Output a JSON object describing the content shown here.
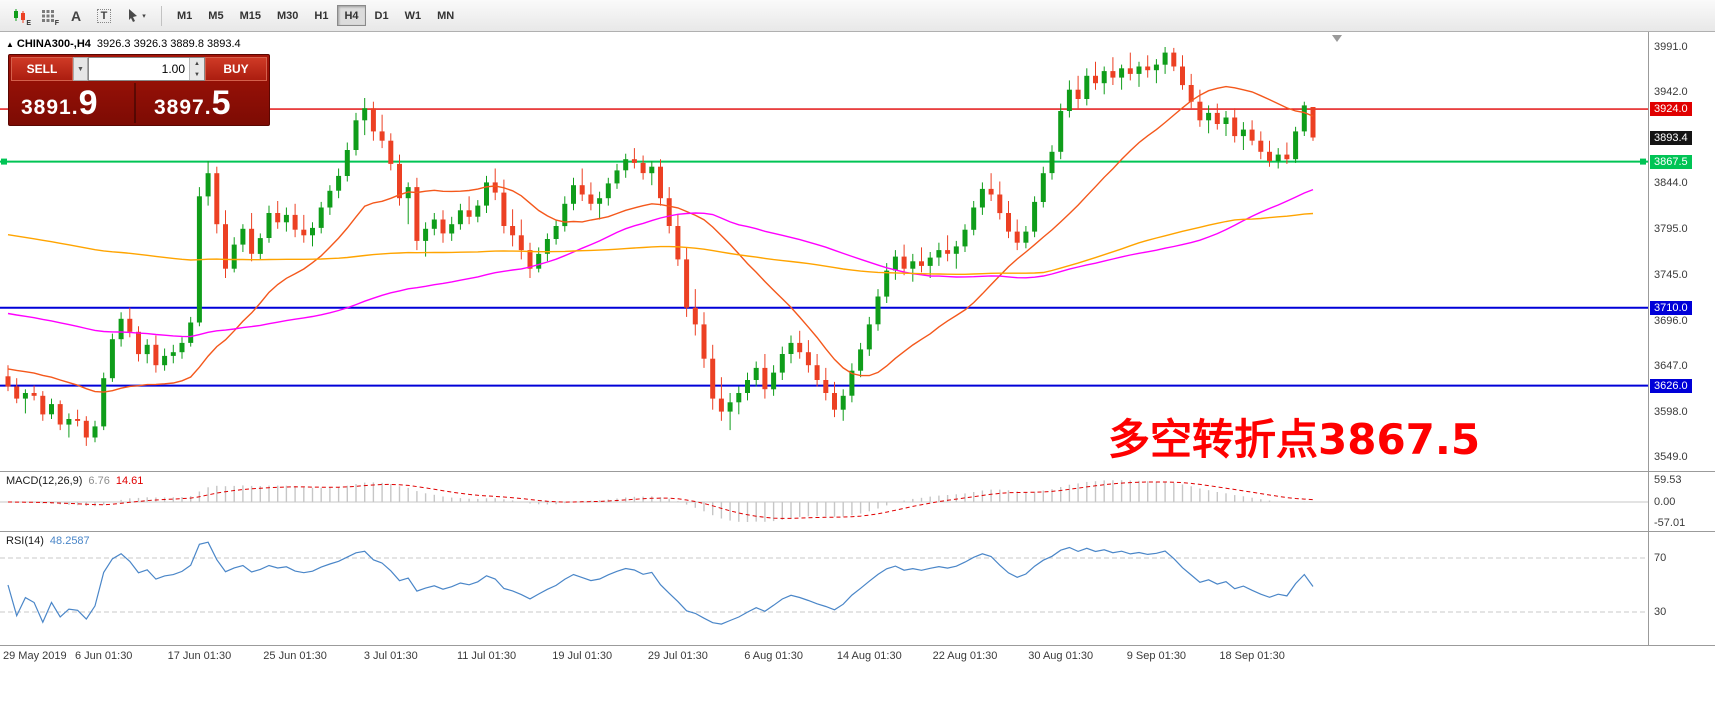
{
  "toolbar": {
    "icons": [
      {
        "name": "chart-bars-icon",
        "sub": "E"
      },
      {
        "name": "grid-icon",
        "sub": "F"
      },
      {
        "name": "text-label-icon",
        "glyph": "A"
      },
      {
        "name": "text-box-icon",
        "glyph": "T"
      },
      {
        "name": "cursor-tool-icon",
        "caret": "▾"
      }
    ],
    "timeframes": [
      "M1",
      "M5",
      "M15",
      "M30",
      "H1",
      "H4",
      "D1",
      "W1",
      "MN"
    ],
    "active_timeframe": "H4"
  },
  "chart": {
    "symbol": "CHINA300-,H4",
    "ohlc": "3926.3 3926.3 3889.8 3893.4",
    "annotation": {
      "text": "多空转折点3867.5",
      "color": "#fe0000"
    },
    "order_panel": {
      "sell_label": "SELL",
      "buy_label": "BUY",
      "volume": "1.00",
      "sell_price_main": "3891.",
      "sell_price_big": "9",
      "buy_price_main": "3897.",
      "buy_price_big": "5"
    },
    "hlines": [
      {
        "price": 3924.0,
        "color": "#e00000",
        "width": 1.4,
        "handles": false
      },
      {
        "price": 3867.5,
        "color": "#00c455",
        "width": 2,
        "handles": true
      },
      {
        "price": 3710.0,
        "color": "#0000d8",
        "width": 2,
        "handles": false
      },
      {
        "price": 3626.0,
        "color": "#0000d8",
        "width": 2,
        "handles": false
      }
    ],
    "badges": [
      {
        "text": "3924.0",
        "price": 3924.0,
        "bg": "#e00000"
      },
      {
        "text": "3893.4",
        "price": 3893.4,
        "bg": "#141414"
      },
      {
        "text": "3867.5",
        "price": 3867.5,
        "bg": "#00c455"
      },
      {
        "text": "3710.0",
        "price": 3710.0,
        "bg": "#0000d8"
      },
      {
        "text": "3626.0",
        "price": 3626.0,
        "bg": "#0000d8"
      }
    ],
    "axis_ticks": [
      3991.0,
      3942.0,
      3844.0,
      3795.0,
      3745.0,
      3696.0,
      3647.0,
      3598.0,
      3549.0
    ]
  },
  "macd": {
    "name": "MACD(12,26,9)",
    "value_main": "6.76",
    "value_signal": "14.61",
    "fast": 12,
    "slow": 26,
    "signal": 9,
    "axis": [
      59.53,
      0.0,
      -57.01
    ]
  },
  "rsi": {
    "name": "RSI(14)",
    "value": "48.2587",
    "period": 14,
    "levels": [
      70,
      30
    ],
    "axis": [
      70,
      30
    ]
  },
  "time_axis": {
    "labels": [
      {
        "text": "29 May 2019",
        "i": 0
      },
      {
        "text": "6 Jun 01:30",
        "i": 11
      },
      {
        "text": "17 Jun 01:30",
        "i": 22
      },
      {
        "text": "25 Jun 01:30",
        "i": 33
      },
      {
        "text": "3 Jul 01:30",
        "i": 44
      },
      {
        "text": "11 Jul 01:30",
        "i": 55
      },
      {
        "text": "19 Jul 01:30",
        "i": 66
      },
      {
        "text": "29 Jul 01:30",
        "i": 77
      },
      {
        "text": "6 Aug 01:30",
        "i": 88
      },
      {
        "text": "14 Aug 01:30",
        "i": 99
      },
      {
        "text": "22 Aug 01:30",
        "i": 110
      },
      {
        "text": "30 Aug 01:30",
        "i": 121
      },
      {
        "text": "9 Sep 01:30",
        "i": 132
      },
      {
        "text": "18 Sep 01:30",
        "i": 143
      }
    ]
  },
  "chart_data": {
    "type": "candlestick",
    "title": "CHINA300-,H4",
    "timeframe": "H4",
    "current_bar": {
      "open": 3926.3,
      "high": 3926.3,
      "low": 3889.8,
      "close": 3893.4
    },
    "y_ticks": [
      3991.0,
      3942.0,
      3893.4,
      3844.0,
      3795.0,
      3745.0,
      3696.0,
      3647.0,
      3598.0,
      3549.0
    ],
    "levels": {
      "resistance": 3924.0,
      "pivot": 3867.5,
      "support1": 3710.0,
      "support2": 3626.0
    },
    "colors": {
      "up": "#0f9d1a",
      "down": "#ec4023"
    },
    "moving_averages": [
      {
        "name": "ma-fast",
        "period": 20,
        "seed": 3645,
        "color": "#f4581c"
      },
      {
        "name": "ma-mid",
        "period": 60,
        "seed": 3705,
        "color": "#ff00ff"
      },
      {
        "name": "ma-slow",
        "period": 120,
        "seed": 3790,
        "color": "#ffa400"
      }
    ],
    "candles": [
      [
        3636,
        3648,
        3620,
        3625
      ],
      [
        3625,
        3634,
        3607,
        3612
      ],
      [
        3612,
        3622,
        3596,
        3618
      ],
      [
        3618,
        3626,
        3610,
        3615
      ],
      [
        3615,
        3620,
        3588,
        3595
      ],
      [
        3595,
        3612,
        3590,
        3606
      ],
      [
        3606,
        3610,
        3578,
        3584
      ],
      [
        3584,
        3596,
        3570,
        3590
      ],
      [
        3590,
        3600,
        3582,
        3588
      ],
      [
        3588,
        3593,
        3561,
        3570
      ],
      [
        3570,
        3588,
        3565,
        3582
      ],
      [
        3582,
        3640,
        3578,
        3634
      ],
      [
        3634,
        3682,
        3630,
        3676
      ],
      [
        3676,
        3705,
        3668,
        3698
      ],
      [
        3698,
        3710,
        3678,
        3684
      ],
      [
        3684,
        3690,
        3652,
        3660
      ],
      [
        3660,
        3676,
        3650,
        3670
      ],
      [
        3670,
        3680,
        3640,
        3648
      ],
      [
        3648,
        3666,
        3642,
        3658
      ],
      [
        3658,
        3670,
        3650,
        3662
      ],
      [
        3662,
        3678,
        3655,
        3672
      ],
      [
        3672,
        3700,
        3668,
        3694
      ],
      [
        3694,
        3840,
        3690,
        3830
      ],
      [
        3830,
        3868,
        3820,
        3855
      ],
      [
        3855,
        3862,
        3790,
        3800
      ],
      [
        3800,
        3815,
        3742,
        3752
      ],
      [
        3752,
        3786,
        3748,
        3778
      ],
      [
        3778,
        3800,
        3770,
        3795
      ],
      [
        3795,
        3812,
        3760,
        3768
      ],
      [
        3768,
        3790,
        3762,
        3785
      ],
      [
        3785,
        3820,
        3780,
        3812
      ],
      [
        3812,
        3825,
        3795,
        3802
      ],
      [
        3802,
        3818,
        3792,
        3810
      ],
      [
        3810,
        3822,
        3786,
        3794
      ],
      [
        3794,
        3810,
        3780,
        3788
      ],
      [
        3788,
        3802,
        3776,
        3796
      ],
      [
        3796,
        3824,
        3790,
        3818
      ],
      [
        3818,
        3842,
        3810,
        3836
      ],
      [
        3836,
        3860,
        3828,
        3852
      ],
      [
        3852,
        3888,
        3846,
        3880
      ],
      [
        3880,
        3920,
        3874,
        3912
      ],
      [
        3912,
        3936,
        3896,
        3925
      ],
      [
        3925,
        3932,
        3890,
        3900
      ],
      [
        3900,
        3918,
        3882,
        3890
      ],
      [
        3890,
        3898,
        3858,
        3865
      ],
      [
        3865,
        3875,
        3820,
        3828
      ],
      [
        3828,
        3845,
        3800,
        3840
      ],
      [
        3840,
        3850,
        3772,
        3782
      ],
      [
        3782,
        3802,
        3765,
        3795
      ],
      [
        3795,
        3812,
        3788,
        3805
      ],
      [
        3805,
        3815,
        3780,
        3790
      ],
      [
        3790,
        3808,
        3782,
        3800
      ],
      [
        3800,
        3822,
        3794,
        3815
      ],
      [
        3815,
        3830,
        3800,
        3808
      ],
      [
        3808,
        3826,
        3802,
        3820
      ],
      [
        3820,
        3852,
        3812,
        3845
      ],
      [
        3845,
        3860,
        3826,
        3834
      ],
      [
        3834,
        3848,
        3790,
        3798
      ],
      [
        3798,
        3816,
        3776,
        3788
      ],
      [
        3788,
        3805,
        3762,
        3772
      ],
      [
        3772,
        3780,
        3742,
        3752
      ],
      [
        3752,
        3775,
        3748,
        3768
      ],
      [
        3768,
        3790,
        3760,
        3784
      ],
      [
        3784,
        3805,
        3778,
        3798
      ],
      [
        3798,
        3830,
        3792,
        3822
      ],
      [
        3822,
        3850,
        3815,
        3842
      ],
      [
        3842,
        3860,
        3825,
        3832
      ],
      [
        3832,
        3845,
        3815,
        3822
      ],
      [
        3822,
        3835,
        3805,
        3828
      ],
      [
        3828,
        3850,
        3820,
        3844
      ],
      [
        3844,
        3865,
        3838,
        3858
      ],
      [
        3858,
        3876,
        3850,
        3870
      ],
      [
        3870,
        3882,
        3860,
        3866
      ],
      [
        3866,
        3874,
        3848,
        3855
      ],
      [
        3855,
        3868,
        3842,
        3862
      ],
      [
        3862,
        3870,
        3820,
        3828
      ],
      [
        3828,
        3840,
        3790,
        3798
      ],
      [
        3798,
        3810,
        3755,
        3762
      ],
      [
        3762,
        3775,
        3700,
        3710
      ],
      [
        3710,
        3730,
        3680,
        3692
      ],
      [
        3692,
        3705,
        3645,
        3655
      ],
      [
        3655,
        3670,
        3600,
        3612
      ],
      [
        3612,
        3635,
        3588,
        3598
      ],
      [
        3598,
        3618,
        3578,
        3608
      ],
      [
        3608,
        3625,
        3595,
        3618
      ],
      [
        3618,
        3640,
        3610,
        3632
      ],
      [
        3632,
        3652,
        3625,
        3645
      ],
      [
        3645,
        3660,
        3612,
        3622
      ],
      [
        3622,
        3648,
        3615,
        3640
      ],
      [
        3640,
        3668,
        3632,
        3660
      ],
      [
        3660,
        3680,
        3650,
        3672
      ],
      [
        3672,
        3685,
        3655,
        3662
      ],
      [
        3662,
        3675,
        3640,
        3648
      ],
      [
        3648,
        3660,
        3625,
        3632
      ],
      [
        3632,
        3645,
        3610,
        3618
      ],
      [
        3618,
        3630,
        3592,
        3600
      ],
      [
        3600,
        3622,
        3588,
        3615
      ],
      [
        3615,
        3650,
        3608,
        3642
      ],
      [
        3642,
        3672,
        3635,
        3665
      ],
      [
        3665,
        3700,
        3658,
        3692
      ],
      [
        3692,
        3730,
        3685,
        3722
      ],
      [
        3722,
        3758,
        3715,
        3750
      ],
      [
        3750,
        3772,
        3740,
        3765
      ],
      [
        3765,
        3778,
        3745,
        3752
      ],
      [
        3752,
        3768,
        3738,
        3760
      ],
      [
        3760,
        3775,
        3748,
        3755
      ],
      [
        3755,
        3770,
        3742,
        3764
      ],
      [
        3764,
        3780,
        3755,
        3772
      ],
      [
        3772,
        3788,
        3760,
        3768
      ],
      [
        3768,
        3782,
        3752,
        3776
      ],
      [
        3776,
        3800,
        3770,
        3794
      ],
      [
        3794,
        3825,
        3788,
        3818
      ],
      [
        3818,
        3845,
        3810,
        3838
      ],
      [
        3838,
        3855,
        3825,
        3832
      ],
      [
        3832,
        3846,
        3805,
        3812
      ],
      [
        3812,
        3825,
        3785,
        3792
      ],
      [
        3792,
        3805,
        3772,
        3780
      ],
      [
        3780,
        3798,
        3774,
        3792
      ],
      [
        3792,
        3830,
        3786,
        3824
      ],
      [
        3824,
        3862,
        3818,
        3855
      ],
      [
        3855,
        3885,
        3848,
        3878
      ],
      [
        3878,
        3930,
        3870,
        3922
      ],
      [
        3922,
        3955,
        3915,
        3945
      ],
      [
        3945,
        3960,
        3925,
        3935
      ],
      [
        3935,
        3968,
        3928,
        3960
      ],
      [
        3960,
        3975,
        3945,
        3952
      ],
      [
        3952,
        3970,
        3940,
        3965
      ],
      [
        3965,
        3980,
        3950,
        3958
      ],
      [
        3958,
        3972,
        3945,
        3968
      ],
      [
        3968,
        3985,
        3955,
        3962
      ],
      [
        3962,
        3975,
        3948,
        3970
      ],
      [
        3970,
        3982,
        3958,
        3966
      ],
      [
        3966,
        3978,
        3952,
        3972
      ],
      [
        3972,
        3991,
        3962,
        3985
      ],
      [
        3985,
        3990,
        3965,
        3970
      ],
      [
        3970,
        3982,
        3945,
        3950
      ],
      [
        3950,
        3962,
        3925,
        3932
      ],
      [
        3932,
        3945,
        3905,
        3912
      ],
      [
        3912,
        3928,
        3898,
        3920
      ],
      [
        3920,
        3930,
        3902,
        3908
      ],
      [
        3908,
        3922,
        3895,
        3915
      ],
      [
        3915,
        3925,
        3888,
        3895
      ],
      [
        3895,
        3910,
        3880,
        3902
      ],
      [
        3902,
        3912,
        3885,
        3890
      ],
      [
        3890,
        3900,
        3870,
        3878
      ],
      [
        3878,
        3890,
        3862,
        3868
      ],
      [
        3868,
        3882,
        3860,
        3875
      ],
      [
        3875,
        3888,
        3865,
        3870
      ],
      [
        3870,
        3905,
        3866,
        3900
      ],
      [
        3900,
        3932,
        3895,
        3928
      ],
      [
        3926.3,
        3926.3,
        3889.8,
        3893.4
      ]
    ]
  }
}
